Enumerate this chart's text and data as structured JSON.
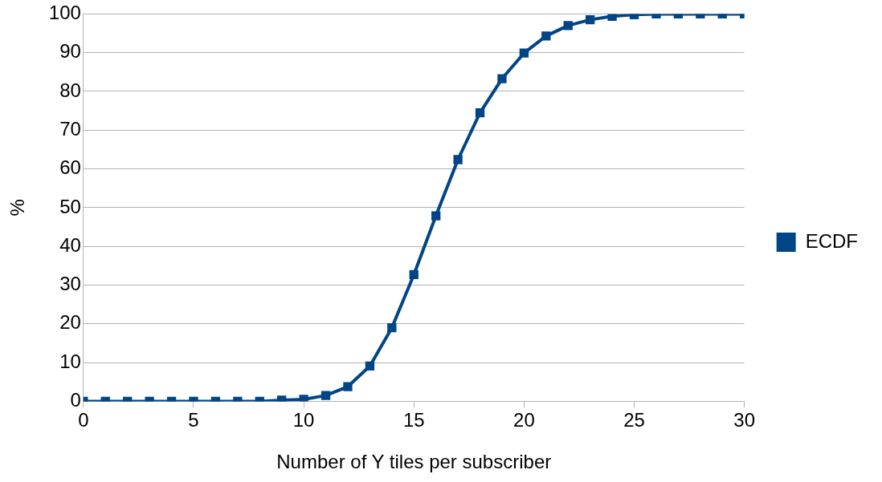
{
  "chart_data": {
    "type": "line",
    "xlabel": "Number of Y tiles per subscriber",
    "ylabel": "%",
    "x": [
      0,
      1,
      2,
      3,
      4,
      5,
      6,
      7,
      8,
      9,
      10,
      11,
      12,
      13,
      14,
      15,
      16,
      17,
      18,
      19,
      20,
      21,
      22,
      23,
      24,
      25,
      26,
      27,
      28,
      29,
      30
    ],
    "series": [
      {
        "name": "ECDF",
        "color": "#004586",
        "values": [
          0,
          0,
          0,
          0,
          0,
          0,
          0,
          0,
          0,
          0.3,
          0.5,
          1.5,
          3.8,
          9.1,
          19.0,
          32.7,
          47.9,
          62.4,
          74.5,
          83.3,
          89.9,
          94.3,
          97.0,
          98.5,
          99.4,
          99.8,
          100,
          100,
          100,
          100,
          100
        ]
      }
    ],
    "xlim": [
      0,
      30
    ],
    "xticks": [
      0,
      5,
      10,
      15,
      20,
      25,
      30
    ],
    "ylim": [
      0,
      100
    ],
    "yticks": [
      0,
      10,
      20,
      30,
      40,
      50,
      60,
      70,
      80,
      90,
      100
    ],
    "grid": "y",
    "legend": "right",
    "marker": "square",
    "line_style": "solid"
  }
}
